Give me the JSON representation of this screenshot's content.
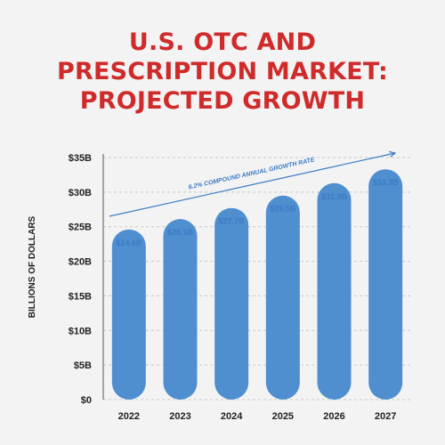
{
  "title": {
    "line1": "U.S. OTC AND",
    "line2": "PRESCRIPTION MARKET:",
    "line3": "PROJECTED GROWTH"
  },
  "colors": {
    "title": "#cf2b2b",
    "bar": "#4f8fd0",
    "label": "#3a7bc4",
    "grid": "#c9c9c9"
  },
  "chart_data": {
    "type": "bar",
    "categories": [
      "2022",
      "2023",
      "2024",
      "2025",
      "2026",
      "2027"
    ],
    "values": [
      24.6,
      26.1,
      27.7,
      29.5,
      31.3,
      33.3
    ],
    "value_labels": [
      "$24.6B",
      "$26.1B",
      "$27.7B",
      "$29.5B",
      "$31.3B",
      "$33.3B"
    ],
    "ylabel": "BILLIONS OF DOLLARS",
    "xlabel": "",
    "ylim": [
      0,
      35
    ],
    "yticks": [
      0,
      5,
      10,
      15,
      20,
      25,
      30,
      35
    ],
    "ytick_labels": [
      "$0",
      "$5B",
      "$10B",
      "$15B",
      "$20B",
      "$25B",
      "$30B",
      "$35B"
    ],
    "grid": true,
    "annotation": "6.2% COMPOUND ANNUAL GROWTH RATE"
  }
}
